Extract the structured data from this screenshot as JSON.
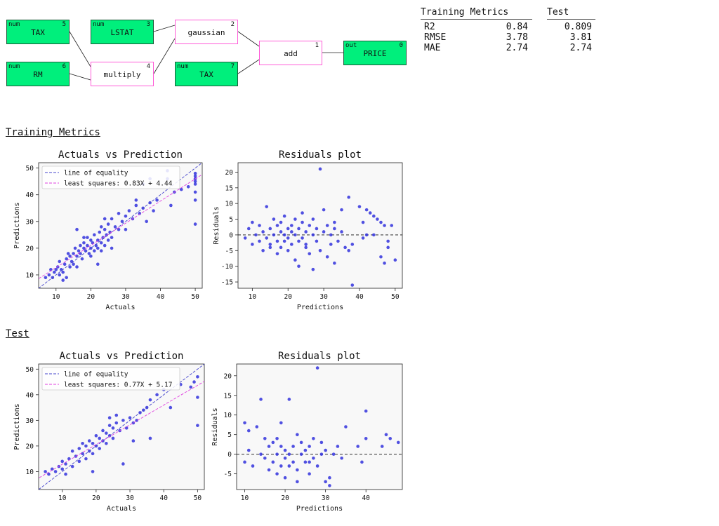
{
  "graph": {
    "nodes": [
      {
        "id": "n5",
        "kind": "num",
        "index": "5",
        "label": "TAX"
      },
      {
        "id": "n6",
        "kind": "num",
        "index": "6",
        "label": "RM"
      },
      {
        "id": "n3",
        "kind": "num",
        "index": "3",
        "label": "LSTAT"
      },
      {
        "id": "n4",
        "kind": "",
        "index": "4",
        "label": "multiply"
      },
      {
        "id": "n2",
        "kind": "",
        "index": "2",
        "label": "gaussian"
      },
      {
        "id": "n7",
        "kind": "num",
        "index": "7",
        "label": "TAX"
      },
      {
        "id": "n1",
        "kind": "",
        "index": "1",
        "label": "add"
      },
      {
        "id": "n0",
        "kind": "out",
        "index": "0",
        "label": "PRICE"
      }
    ]
  },
  "metrics": {
    "headers": [
      "Training Metrics",
      "Test"
    ],
    "rows": [
      {
        "name": "R2",
        "train": "0.84",
        "test": "0.809"
      },
      {
        "name": "RMSE",
        "train": "3.78",
        "test": "3.81"
      },
      {
        "name": "MAE",
        "train": "2.74",
        "test": "2.74"
      }
    ]
  },
  "sections": {
    "training": "Training Metrics",
    "test": "Test"
  },
  "colors": {
    "points": "#3333dd",
    "equality": "#4444cc",
    "fit": "#e040e0",
    "var_node": "#00ef7c",
    "op_border": "#ff5cd8"
  },
  "chart_data": [
    {
      "id": "train_avp",
      "type": "scatter",
      "title": "Actuals vs Prediction",
      "xlabel": "Actuals",
      "ylabel": "Predictions",
      "xlim": [
        5,
        52
      ],
      "ylim": [
        5,
        52
      ],
      "xticks": [
        10,
        20,
        30,
        40,
        50
      ],
      "yticks": [
        10,
        20,
        30,
        40,
        50
      ],
      "legend": [
        "line of equality",
        "least squares: 0.83X + 4.44"
      ],
      "legend_position": "top-left",
      "fit": {
        "slope": 0.83,
        "intercept": 4.44
      },
      "points": [
        [
          7,
          9
        ],
        [
          8,
          10
        ],
        [
          8.5,
          12
        ],
        [
          9,
          9
        ],
        [
          9.5,
          11
        ],
        [
          10,
          12
        ],
        [
          10.5,
          13
        ],
        [
          11,
          10
        ],
        [
          11,
          15
        ],
        [
          11.5,
          12
        ],
        [
          12,
          11
        ],
        [
          12.5,
          14
        ],
        [
          13,
          16
        ],
        [
          13,
          9
        ],
        [
          13.5,
          18
        ],
        [
          14,
          13
        ],
        [
          14,
          17
        ],
        [
          14.5,
          15
        ],
        [
          15,
          18
        ],
        [
          15,
          14
        ],
        [
          15.5,
          20
        ],
        [
          16,
          17
        ],
        [
          16,
          13
        ],
        [
          16.5,
          19
        ],
        [
          17,
          21
        ],
        [
          17,
          18
        ],
        [
          17.5,
          16
        ],
        [
          18,
          20
        ],
        [
          18,
          22
        ],
        [
          18.5,
          19
        ],
        [
          19,
          21
        ],
        [
          19,
          24
        ],
        [
          19.5,
          18
        ],
        [
          20,
          20
        ],
        [
          20,
          23
        ],
        [
          20,
          17
        ],
        [
          20.5,
          22
        ],
        [
          21,
          19
        ],
        [
          21,
          25
        ],
        [
          21.5,
          21
        ],
        [
          22,
          23
        ],
        [
          22,
          20
        ],
        [
          22.5,
          26
        ],
        [
          23,
          22
        ],
        [
          23,
          28
        ],
        [
          23,
          19
        ],
        [
          23.5,
          24
        ],
        [
          24,
          21
        ],
        [
          24,
          27
        ],
        [
          24.5,
          25
        ],
        [
          25,
          23
        ],
        [
          25,
          29
        ],
        [
          25.5,
          26
        ],
        [
          26,
          24
        ],
        [
          26,
          31
        ],
        [
          27,
          28
        ],
        [
          28,
          27
        ],
        [
          28,
          33
        ],
        [
          29,
          30
        ],
        [
          30,
          32
        ],
        [
          30,
          27
        ],
        [
          31,
          34
        ],
        [
          32,
          31
        ],
        [
          33,
          36
        ],
        [
          34,
          33
        ],
        [
          35,
          35
        ],
        [
          36,
          30
        ],
        [
          37,
          37
        ],
        [
          38,
          34
        ],
        [
          39,
          38
        ],
        [
          12,
          8
        ],
        [
          22,
          14
        ],
        [
          24,
          31
        ],
        [
          26,
          20
        ],
        [
          42,
          46
        ],
        [
          42,
          49
        ],
        [
          43,
          36
        ],
        [
          44,
          41
        ],
        [
          46,
          42
        ],
        [
          48,
          43
        ],
        [
          50,
          29
        ],
        [
          50,
          41
        ],
        [
          50,
          44
        ],
        [
          50,
          45
        ],
        [
          50,
          46
        ],
        [
          50,
          47
        ],
        [
          50,
          48
        ],
        [
          50,
          38
        ],
        [
          37,
          46
        ],
        [
          35,
          44
        ],
        [
          33,
          38
        ],
        [
          16,
          27
        ],
        [
          18,
          24
        ]
      ]
    },
    {
      "id": "train_res",
      "type": "scatter",
      "title": "Residuals plot",
      "xlabel": "Predictions",
      "ylabel": "Residuals",
      "xlim": [
        6,
        52
      ],
      "ylim": [
        -17,
        23
      ],
      "xticks": [
        10,
        20,
        30,
        40,
        50
      ],
      "yticks": [
        -15,
        -10,
        -5,
        0,
        5,
        10,
        15,
        20
      ],
      "zero_line": true,
      "points": [
        [
          8,
          -1
        ],
        [
          9,
          2
        ],
        [
          10,
          -3
        ],
        [
          10,
          4
        ],
        [
          11,
          0
        ],
        [
          12,
          -2
        ],
        [
          12,
          3
        ],
        [
          13,
          1
        ],
        [
          13,
          -5
        ],
        [
          14,
          9
        ],
        [
          14,
          -1
        ],
        [
          15,
          2
        ],
        [
          15,
          -3
        ],
        [
          16,
          0
        ],
        [
          16,
          5
        ],
        [
          17,
          -2
        ],
        [
          17,
          3
        ],
        [
          17,
          -6
        ],
        [
          18,
          1
        ],
        [
          18,
          -4
        ],
        [
          18,
          4
        ],
        [
          19,
          0
        ],
        [
          19,
          -2
        ],
        [
          19,
          6
        ],
        [
          20,
          2
        ],
        [
          20,
          -5
        ],
        [
          20,
          -1
        ],
        [
          21,
          3
        ],
        [
          21,
          -3
        ],
        [
          21,
          1
        ],
        [
          22,
          0
        ],
        [
          22,
          -8
        ],
        [
          22,
          5
        ],
        [
          23,
          -2
        ],
        [
          23,
          2
        ],
        [
          23,
          -10
        ],
        [
          24,
          4
        ],
        [
          24,
          -1
        ],
        [
          24,
          7
        ],
        [
          25,
          -3
        ],
        [
          25,
          1
        ],
        [
          26,
          -6
        ],
        [
          26,
          3
        ],
        [
          27,
          0
        ],
        [
          27,
          -11
        ],
        [
          27,
          5
        ],
        [
          28,
          -2
        ],
        [
          28,
          2
        ],
        [
          29,
          21
        ],
        [
          29,
          -5
        ],
        [
          30,
          1
        ],
        [
          30,
          8
        ],
        [
          31,
          -7
        ],
        [
          31,
          3
        ],
        [
          32,
          0
        ],
        [
          32,
          -3
        ],
        [
          33,
          -9
        ],
        [
          33,
          4
        ],
        [
          34,
          -2
        ],
        [
          35,
          8
        ],
        [
          35,
          1
        ],
        [
          36,
          -4
        ],
        [
          37,
          -5
        ],
        [
          37,
          12
        ],
        [
          38,
          -16
        ],
        [
          38,
          -3
        ],
        [
          40,
          9
        ],
        [
          41,
          -1
        ],
        [
          41,
          4
        ],
        [
          42,
          8
        ],
        [
          43,
          7
        ],
        [
          44,
          6
        ],
        [
          45,
          5
        ],
        [
          46,
          -7
        ],
        [
          46,
          4
        ],
        [
          47,
          3
        ],
        [
          47,
          -9
        ],
        [
          48,
          -2
        ],
        [
          48,
          -4
        ],
        [
          49,
          3
        ],
        [
          50,
          -8
        ],
        [
          42,
          0
        ],
        [
          44,
          0
        ],
        [
          15,
          -4
        ],
        [
          25,
          -4
        ],
        [
          33,
          2
        ]
      ]
    },
    {
      "id": "test_avp",
      "type": "scatter",
      "title": "Actuals vs Prediction",
      "xlabel": "Actuals",
      "ylabel": "Predictions",
      "xlim": [
        3,
        52
      ],
      "ylim": [
        3,
        52
      ],
      "xticks": [
        10,
        20,
        30,
        40,
        50
      ],
      "yticks": [
        10,
        20,
        30,
        40,
        50
      ],
      "legend": [
        "line of equality",
        "least squares: 0.77X + 5.17"
      ],
      "legend_position": "top-left",
      "fit": {
        "slope": 0.77,
        "intercept": 5.17
      },
      "points": [
        [
          5,
          10
        ],
        [
          6,
          9
        ],
        [
          7,
          11
        ],
        [
          8,
          10
        ],
        [
          9,
          12
        ],
        [
          10,
          11
        ],
        [
          10,
          14
        ],
        [
          11,
          9
        ],
        [
          11,
          13
        ],
        [
          12,
          15
        ],
        [
          13,
          12
        ],
        [
          13,
          18
        ],
        [
          14,
          16
        ],
        [
          15,
          14
        ],
        [
          15,
          19
        ],
        [
          16,
          17
        ],
        [
          16,
          21
        ],
        [
          17,
          15
        ],
        [
          17,
          20
        ],
        [
          18,
          18
        ],
        [
          18,
          22
        ],
        [
          19,
          17
        ],
        [
          19,
          21
        ],
        [
          20,
          20
        ],
        [
          20,
          24
        ],
        [
          21,
          19
        ],
        [
          21,
          23
        ],
        [
          22,
          22
        ],
        [
          22,
          26
        ],
        [
          23,
          21
        ],
        [
          23,
          25
        ],
        [
          24,
          24
        ],
        [
          24,
          28
        ],
        [
          25,
          23
        ],
        [
          25,
          27
        ],
        [
          26,
          29
        ],
        [
          27,
          26
        ],
        [
          28,
          30
        ],
        [
          29,
          27
        ],
        [
          30,
          31
        ],
        [
          31,
          29
        ],
        [
          32,
          30
        ],
        [
          33,
          33
        ],
        [
          34,
          34
        ],
        [
          35,
          35
        ],
        [
          36,
          38
        ],
        [
          36,
          23
        ],
        [
          38,
          40
        ],
        [
          40,
          42
        ],
        [
          42,
          35
        ],
        [
          45,
          44
        ],
        [
          48,
          43
        ],
        [
          49,
          45
        ],
        [
          50,
          47
        ],
        [
          50,
          39
        ],
        [
          50,
          28
        ],
        [
          28,
          13
        ],
        [
          19,
          10
        ],
        [
          24,
          31
        ],
        [
          26,
          32
        ],
        [
          31,
          22
        ]
      ]
    },
    {
      "id": "test_res",
      "type": "scatter",
      "title": "Residuals plot",
      "xlabel": "Predictions",
      "ylabel": "Residuals",
      "xlim": [
        8,
        49
      ],
      "ylim": [
        -9,
        23
      ],
      "xticks": [
        10,
        20,
        30,
        40
      ],
      "yticks": [
        -5,
        0,
        5,
        10,
        15,
        20
      ],
      "zero_line": true,
      "points": [
        [
          10,
          8
        ],
        [
          10,
          -2
        ],
        [
          11,
          6
        ],
        [
          11,
          1
        ],
        [
          12,
          -3
        ],
        [
          13,
          7
        ],
        [
          14,
          14
        ],
        [
          14,
          0
        ],
        [
          15,
          -1
        ],
        [
          15,
          4
        ],
        [
          16,
          2
        ],
        [
          16,
          -4
        ],
        [
          17,
          -2
        ],
        [
          17,
          3
        ],
        [
          18,
          0
        ],
        [
          18,
          -5
        ],
        [
          19,
          8
        ],
        [
          19,
          -3
        ],
        [
          19,
          2
        ],
        [
          20,
          -1
        ],
        [
          20,
          1
        ],
        [
          20,
          -6
        ],
        [
          21,
          0
        ],
        [
          21,
          -3
        ],
        [
          21,
          14
        ],
        [
          22,
          2
        ],
        [
          22,
          -2
        ],
        [
          23,
          5
        ],
        [
          23,
          -4
        ],
        [
          24,
          0
        ],
        [
          24,
          3
        ],
        [
          25,
          -2
        ],
        [
          25,
          1
        ],
        [
          26,
          -5
        ],
        [
          26,
          2
        ],
        [
          27,
          -1
        ],
        [
          27,
          4
        ],
        [
          28,
          22
        ],
        [
          28,
          -3
        ],
        [
          29,
          0
        ],
        [
          29,
          3
        ],
        [
          30,
          -7
        ],
        [
          30,
          1
        ],
        [
          31,
          -6
        ],
        [
          31,
          -8
        ],
        [
          32,
          0
        ],
        [
          33,
          2
        ],
        [
          34,
          -1
        ],
        [
          35,
          7
        ],
        [
          38,
          2
        ],
        [
          39,
          -2
        ],
        [
          40,
          11
        ],
        [
          40,
          4
        ],
        [
          44,
          2
        ],
        [
          45,
          5
        ],
        [
          46,
          4
        ],
        [
          48,
          3
        ],
        [
          23,
          -7
        ],
        [
          18,
          4
        ],
        [
          26,
          -2
        ]
      ]
    }
  ]
}
